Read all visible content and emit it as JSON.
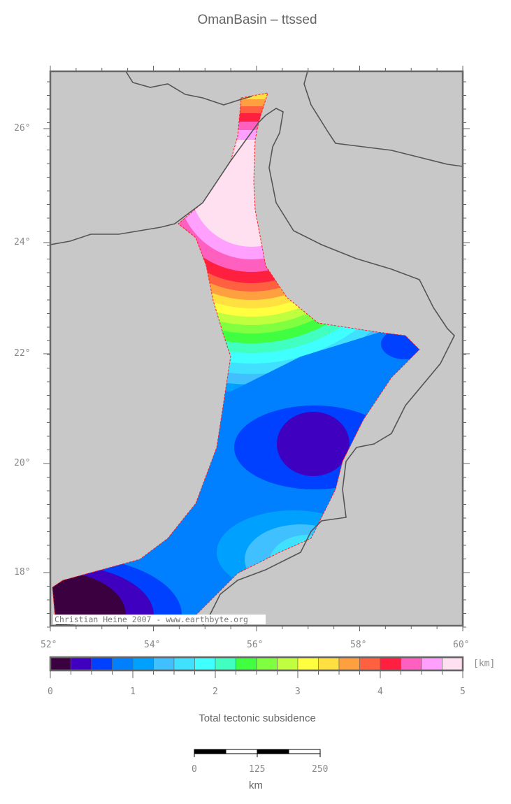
{
  "title": "OmanBasin – ttssed",
  "watermark": "Christian Heine 2007 - www.earthbyte.org",
  "map": {
    "lon_labels": [
      "52°",
      "54°",
      "56°",
      "58°",
      "60°"
    ],
    "lat_labels": [
      "26°",
      "24°",
      "22°",
      "20°",
      "18°"
    ],
    "ocean_color": "#ffffff",
    "land_color": "#c8c8c8",
    "coastline_color": "#555555",
    "basin_outline_color": "#ff2020"
  },
  "colorbar": {
    "unit": "[km]",
    "title": "Total tectonic subsidence",
    "range": [
      0,
      5
    ],
    "tick_labels": [
      "0",
      "1",
      "2",
      "3",
      "4",
      "5"
    ],
    "colors": [
      "#3a0040",
      "#3f00c0",
      "#0040ff",
      "#0080ff",
      "#00a0ff",
      "#40c0ff",
      "#40e0ff",
      "#40ffff",
      "#40ffc0",
      "#40ff40",
      "#80ff40",
      "#c0ff40",
      "#ffff40",
      "#ffe040",
      "#ffa040",
      "#ff6040",
      "#ff2040",
      "#ff60c0",
      "#ffa0ff",
      "#ffe0f0"
    ]
  },
  "scalebar": {
    "labels": [
      "0",
      "125",
      "250"
    ],
    "unit": "km"
  }
}
